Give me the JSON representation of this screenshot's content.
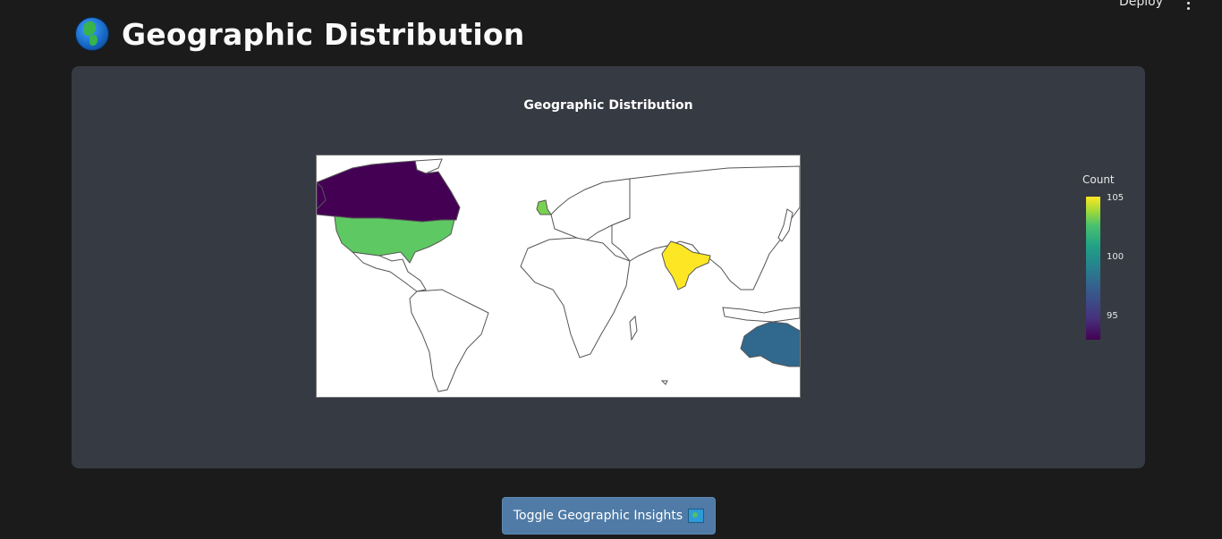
{
  "topbar": {
    "deploy_label": "Deploy",
    "menu_icon": "vertical-ellipsis-icon"
  },
  "header": {
    "icon": "globe-icon",
    "title": "Geographic Distribution"
  },
  "chart_data": {
    "type": "choropleth",
    "title": "Geographic Distribution",
    "colorbar": {
      "title": "Count",
      "ticks": [
        95,
        100,
        105
      ],
      "range": [
        93,
        105.5
      ],
      "colorscale": "viridis"
    },
    "regions": [
      {
        "name": "Canada",
        "value": 93
      },
      {
        "name": "United States",
        "value": 103
      },
      {
        "name": "United Kingdom",
        "value": 103
      },
      {
        "name": "India",
        "value": 105
      },
      {
        "name": "Australia",
        "value": 97
      }
    ],
    "colors": {
      "Canada": "#440154",
      "United States": "#5ec962",
      "United Kingdom": "#7ad151",
      "India": "#fde725",
      "Australia": "#31688e"
    }
  },
  "controls": {
    "toggle_label": "Toggle Geographic Insights",
    "toggle_icon": "map-icon"
  }
}
